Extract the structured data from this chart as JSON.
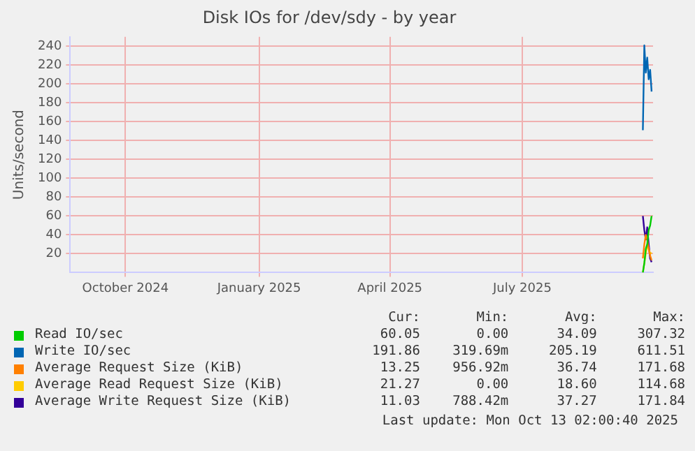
{
  "chart_data": {
    "type": "line",
    "title": "Disk IOs for /dev/sdy - by year",
    "ylabel": "Units/second",
    "xlim": [
      "2024-09-08",
      "2025-10-14"
    ],
    "xticks": [
      {
        "value": "2024-10-16",
        "label": "October 2024"
      },
      {
        "value": "2025-01-16",
        "label": "January 2025"
      },
      {
        "value": "2025-04-16",
        "label": "April 2025"
      },
      {
        "value": "2025-07-16",
        "label": "July 2025"
      }
    ],
    "ylim": [
      0,
      250
    ],
    "yticks": [
      20,
      40,
      60,
      80,
      100,
      120,
      140,
      160,
      180,
      200,
      220,
      240
    ],
    "grid": true,
    "legend": "bottom",
    "marker": "none",
    "line_style": "solid",
    "series": [
      {
        "name": "Read IO/sec",
        "color": "#00cc00",
        "x": [
          "2025-10-07",
          "2025-10-08",
          "2025-10-09",
          "2025-10-10",
          "2025-10-11",
          "2025-10-12",
          "2025-10-13"
        ],
        "values": [
          0,
          10,
          25,
          30,
          45,
          50,
          60
        ]
      },
      {
        "name": "Write IO/sec",
        "color": "#0066b3",
        "x": [
          "2025-10-07",
          "2025-10-08",
          "2025-10-09",
          "2025-10-10",
          "2025-10-11",
          "2025-10-12",
          "2025-10-13"
        ],
        "values": [
          151,
          241,
          212,
          228,
          205,
          215,
          192
        ]
      },
      {
        "name": "Average Request Size (KiB)",
        "color": "#ff8000",
        "x": [
          "2025-10-07",
          "2025-10-08",
          "2025-10-09",
          "2025-10-10",
          "2025-10-11",
          "2025-10-12",
          "2025-10-13"
        ],
        "values": [
          15,
          30,
          40,
          35,
          25,
          18,
          13
        ]
      },
      {
        "name": "Average Read Request Size (KiB)",
        "color": "#ffcc00",
        "x": [
          "2025-10-07",
          "2025-10-08",
          "2025-10-09",
          "2025-10-10",
          "2025-10-11",
          "2025-10-12",
          "2025-10-13"
        ],
        "values": [
          0,
          10,
          20,
          30,
          25,
          20,
          21
        ]
      },
      {
        "name": "Average Write Request Size (KiB)",
        "color": "#330099",
        "x": [
          "2025-10-07",
          "2025-10-08",
          "2025-10-09",
          "2025-10-10",
          "2025-10-11",
          "2025-10-12",
          "2025-10-13"
        ],
        "values": [
          60,
          45,
          35,
          48,
          30,
          15,
          11
        ]
      }
    ],
    "annotations": [
      "Cur:",
      "Min:",
      "Avg:",
      "Max:",
      "60.05",
      "0.00",
      "34.09",
      "307.32",
      "191.86",
      "319.69m",
      "205.19",
      "611.51",
      "13.25",
      "956.92m",
      "36.74",
      "171.68",
      "21.27",
      "0.00",
      "18.60",
      "114.68",
      "11.03",
      "788.42m",
      "37.27",
      "171.84",
      "Last update: Mon Oct 13 02:00:40 2025"
    ]
  }
}
